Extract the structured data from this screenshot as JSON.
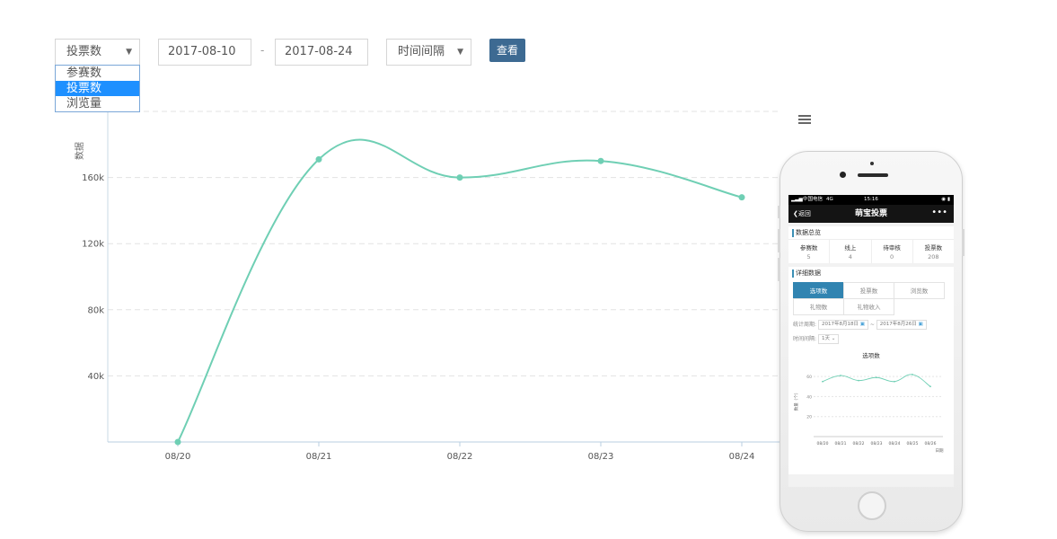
{
  "toolbar": {
    "metric_select": {
      "value": "投票数",
      "options": [
        "参赛数",
        "投票数",
        "浏览量"
      ],
      "selected_index": 1
    },
    "start_date": "2017-08-10",
    "separator": "-",
    "end_date": "2017-08-24",
    "interval_select": {
      "value": "时间间隔"
    },
    "search_label": "查看"
  },
  "chart_data": {
    "type": "line",
    "ylabel": "数据",
    "categories": [
      "08/20",
      "08/21",
      "08/22",
      "08/23",
      "08/24"
    ],
    "series": [
      {
        "values": [
          0,
          171000,
          160000,
          170000,
          148000
        ]
      }
    ],
    "yticks": [
      40000,
      80000,
      120000,
      160000
    ],
    "ytick_labels": [
      "40k",
      "80k",
      "120k",
      "160k"
    ],
    "ylim": [
      0,
      200000
    ],
    "grid": true,
    "color": "#6fcfb4"
  },
  "phone": {
    "status": {
      "carrier": "中国电信",
      "network": "4G",
      "time": "15:16"
    },
    "nav": {
      "back": "返回",
      "title": "萌宝投票"
    },
    "overview": {
      "title": "数据总览",
      "stats": [
        {
          "label": "参赛数",
          "value": "5"
        },
        {
          "label": "线上",
          "value": "4"
        },
        {
          "label": "待审核",
          "value": "0"
        },
        {
          "label": "投票数",
          "value": "208"
        }
      ]
    },
    "detail": {
      "title": "详细数据",
      "tabs": [
        "选项数",
        "投票数",
        "浏览数",
        "礼物数",
        "礼物收入"
      ],
      "active_tab": 0,
      "period_label": "统计周期:",
      "period_start": "2017年8月18日",
      "period_sep": "~",
      "period_end": "2017年8月26日",
      "interval_label": "时间间隔:",
      "interval_value": "1天",
      "mini_chart": {
        "title": "选项数",
        "ylabel": "数量（个）",
        "xlabel": "日期",
        "categories": [
          "08/20",
          "08/21",
          "08/22",
          "08/23",
          "08/24",
          "08/25",
          "08/26"
        ],
        "yticks": [
          20,
          40,
          60
        ],
        "ytick_labels": [
          "20",
          "40",
          "60"
        ],
        "ylim": [
          0,
          70
        ],
        "values": [
          55,
          61,
          56,
          59,
          55,
          62,
          50
        ]
      }
    }
  }
}
